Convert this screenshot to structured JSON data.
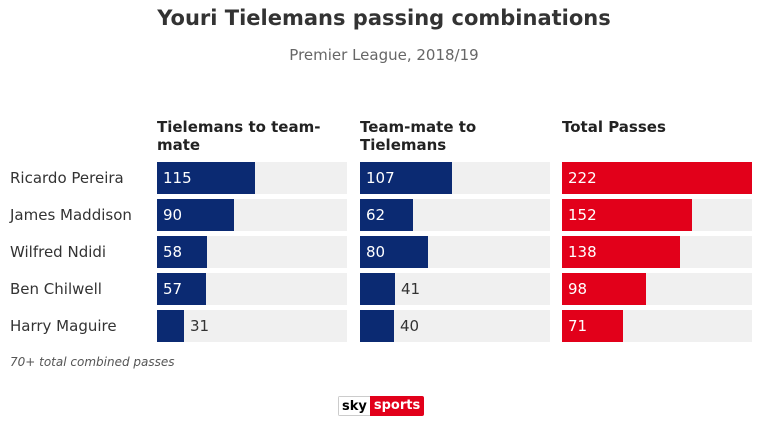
{
  "header": {
    "title": "Youri Tielemans passing combinations",
    "subtitle": "Premier League, 2018/19"
  },
  "chart_data": {
    "type": "bar",
    "categories": [
      "Ricardo Pereira",
      "James Maddison",
      "Wilfred Ndidi",
      "Ben Chilwell",
      "Harry Maguire"
    ],
    "series": [
      {
        "label": "Tielemans to team-mate",
        "values": [
          115,
          90,
          58,
          57,
          31
        ],
        "color": "#0b2a72",
        "max": 222
      },
      {
        "label": "Team-mate to Tielemans",
        "values": [
          107,
          62,
          80,
          41,
          40
        ],
        "color": "#0b2a72",
        "max": 222
      },
      {
        "label": "Total Passes",
        "values": [
          222,
          152,
          138,
          98,
          71
        ],
        "color": "#e2001a",
        "max": 222
      }
    ],
    "track_color": "#f0f0f0"
  },
  "footnote": "70+ total combined passes",
  "logo": {
    "sky": "sky",
    "sports": "sports"
  }
}
